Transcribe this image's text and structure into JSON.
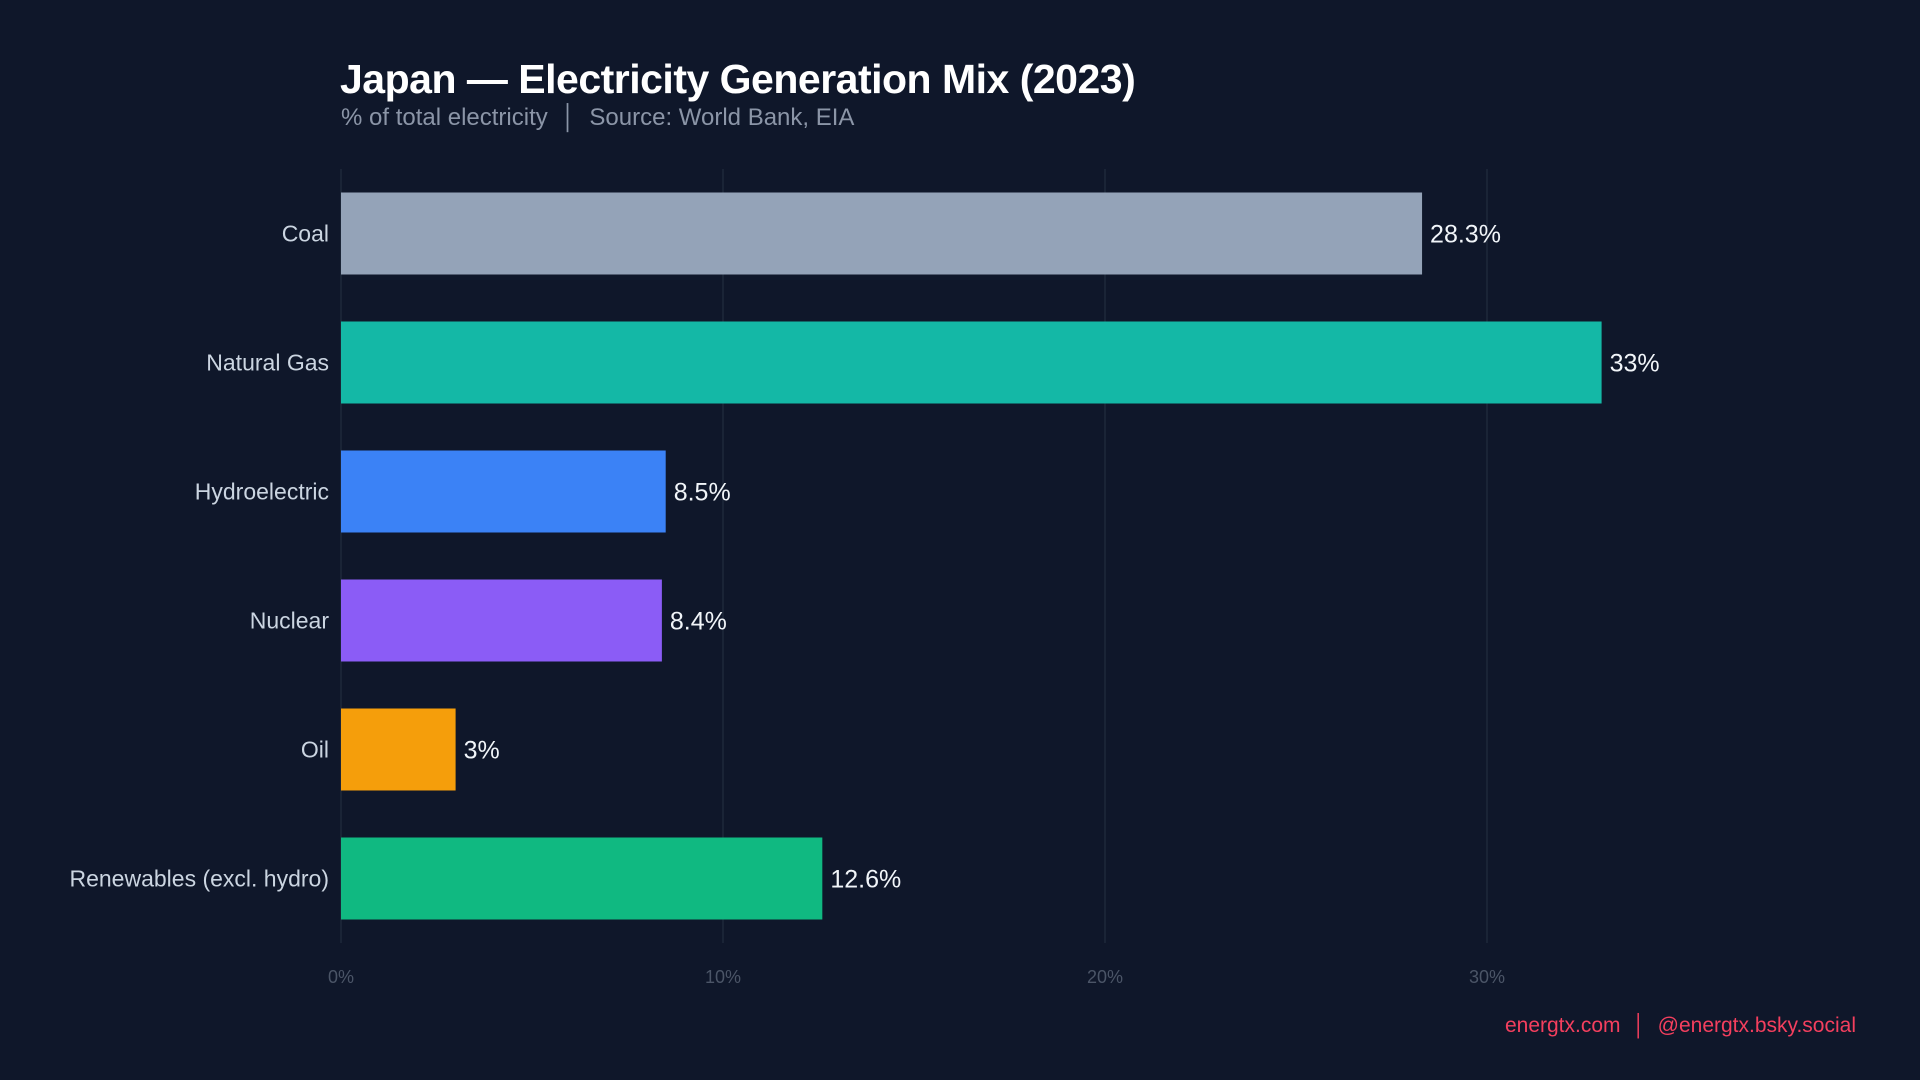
{
  "chart_data": {
    "type": "bar",
    "orientation": "horizontal",
    "title": "Japan — Electricity Generation Mix (2023)",
    "subtitle": "% of total electricity  │  Source: World Bank, EIA",
    "categories": [
      "Coal",
      "Natural Gas",
      "Hydroelectric",
      "Nuclear",
      "Oil",
      "Renewables (excl. hydro)"
    ],
    "values": [
      28.3,
      33,
      8.5,
      8.4,
      3,
      12.6
    ],
    "value_labels": [
      "28.3%",
      "33%",
      "8.5%",
      "8.4%",
      "3%",
      "12.6%"
    ],
    "colors": [
      "#94a3b8",
      "#14b8a6",
      "#3b82f6",
      "#8b5cf6",
      "#f59e0b",
      "#10b981"
    ],
    "xlim": [
      0,
      39
    ],
    "xticks": [
      0,
      10,
      20,
      30
    ],
    "xtick_labels": [
      "0%",
      "10%",
      "20%",
      "30%"
    ],
    "xlabel": "",
    "ylabel": "",
    "grid": "vertical",
    "legend": "none"
  },
  "footer": {
    "site": "energtx.com",
    "separator": "│",
    "social": "@energtx.bsky.social"
  }
}
